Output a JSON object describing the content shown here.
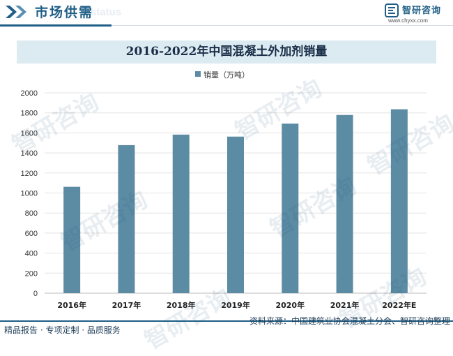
{
  "header": {
    "section_title": "市场供需",
    "section_ghost": "status",
    "brand_name": "智研咨询",
    "brand_url": "www.chyxx.com"
  },
  "chart_data": {
    "type": "bar",
    "title": "2016-2022年中国混凝土外加剂销量",
    "categories": [
      "2016年",
      "2017年",
      "2018年",
      "2019年",
      "2020年",
      "2021年",
      "2022年E"
    ],
    "series": [
      {
        "name": "销量（万吨）",
        "values": [
          1062,
          1478,
          1583,
          1563,
          1693,
          1779,
          1836
        ]
      }
    ],
    "ylim": [
      0,
      2000
    ],
    "yticks": [
      0,
      200,
      400,
      600,
      800,
      1000,
      1200,
      1400,
      1600,
      1800,
      2000
    ],
    "grid": true,
    "legend_position": "top-center",
    "bar_color": "#5c8ca4"
  },
  "watermark": "智研咨询",
  "footer": {
    "left": "精品报告 · 专项定制 · 品质服务",
    "source": "资料来源：中国建筑业协会混凝土分会、智研咨询整理"
  }
}
